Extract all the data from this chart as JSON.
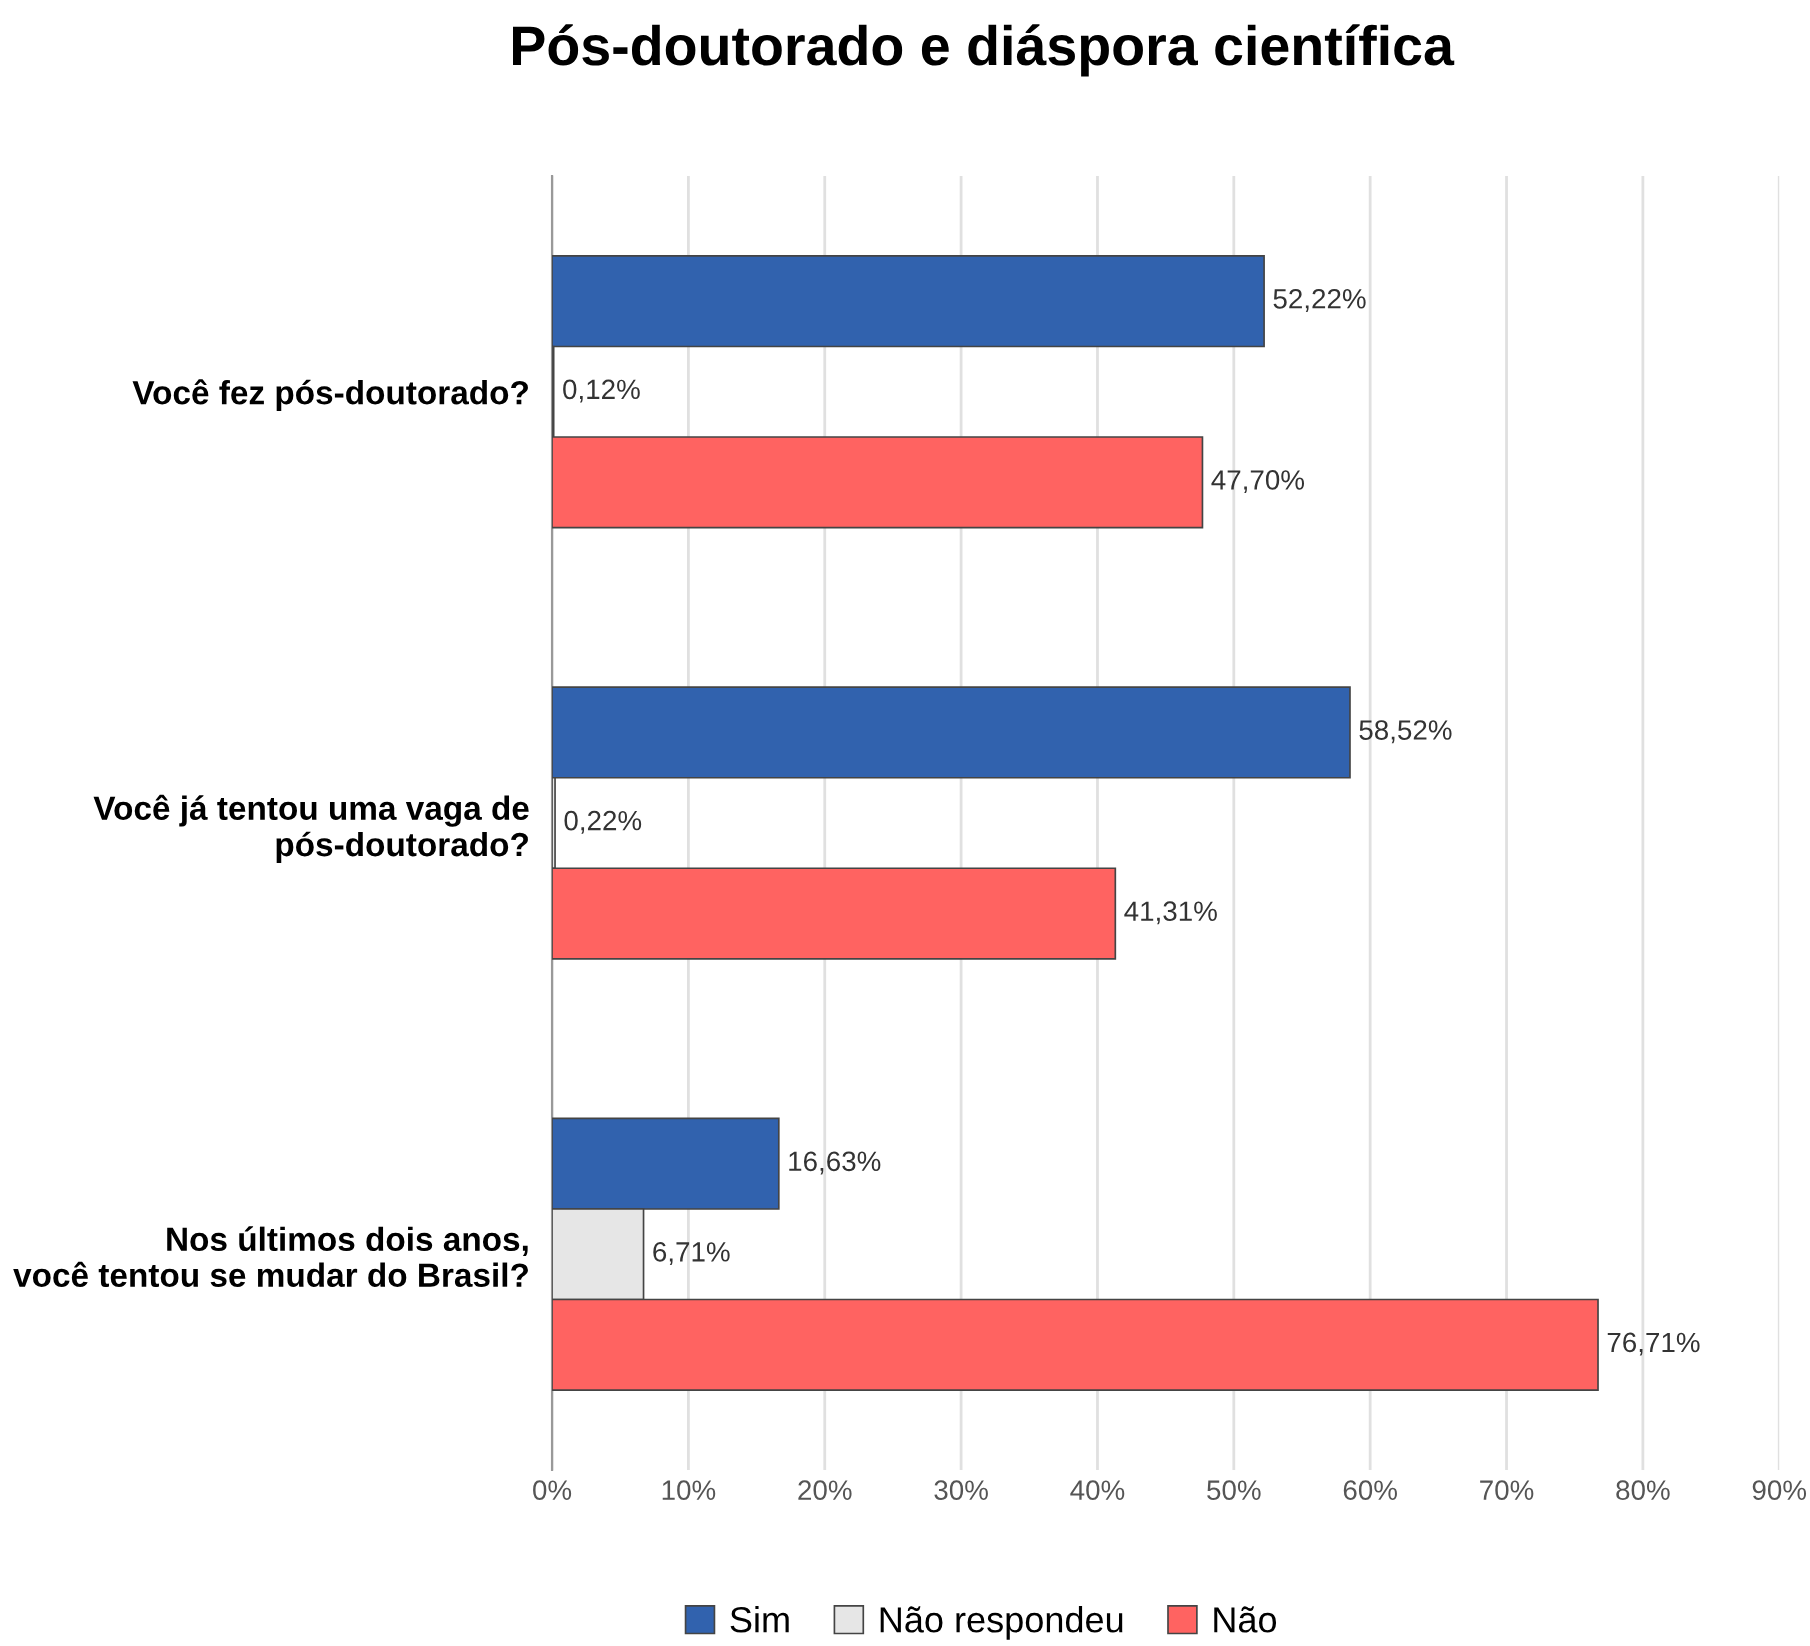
{
  "chart_data": {
    "type": "bar",
    "orientation": "horizontal",
    "title": "Pós-doutorado e diáspora científica",
    "categories": [
      "Você fez pós-doutorado?",
      "Você já tentou uma vaga de\npós-doutorado?",
      "Nos últimos dois anos,\nvocê tentou se mudar do Brasil?"
    ],
    "series": [
      {
        "name": "Sim",
        "color": "#3162ae",
        "values": [
          52.22,
          58.52,
          16.63
        ],
        "value_labels": [
          "52,22%",
          "58,52%",
          "16,63%"
        ]
      },
      {
        "name": "Não respondeu",
        "color": "#e6e6e6",
        "values": [
          0.12,
          0.22,
          6.71
        ],
        "value_labels": [
          "0,12%",
          "0,22%",
          "6,71%"
        ]
      },
      {
        "name": "Não",
        "color": "#ff6361",
        "values": [
          47.7,
          41.31,
          76.71
        ],
        "value_labels": [
          "47,70%",
          "41,31%",
          "76,71%"
        ]
      }
    ],
    "xlim": [
      0,
      90
    ],
    "xticks": [
      {
        "value": 0,
        "label": "0%"
      },
      {
        "value": 10,
        "label": "10%"
      },
      {
        "value": 20,
        "label": "20%"
      },
      {
        "value": 30,
        "label": "30%"
      },
      {
        "value": 40,
        "label": "40%"
      },
      {
        "value": 50,
        "label": "50%"
      },
      {
        "value": 60,
        "label": "60%"
      },
      {
        "value": 70,
        "label": "70%"
      },
      {
        "value": 80,
        "label": "80%"
      },
      {
        "value": 90,
        "label": "90%"
      }
    ],
    "grid": "x",
    "legend": "bottom"
  }
}
